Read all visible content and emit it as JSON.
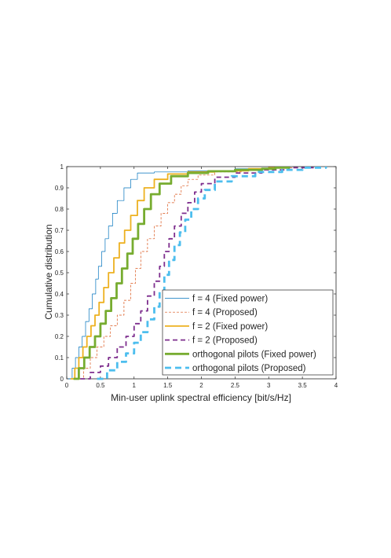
{
  "chart_data": {
    "type": "line",
    "title": "",
    "xlabel": "Min-user uplink spectral efficiency [bit/s/Hz]",
    "ylabel": "Cumulative distribution",
    "xlim": [
      0,
      4
    ],
    "ylim": [
      0,
      1
    ],
    "xticks": [
      "0",
      "0.5",
      "1",
      "1.5",
      "2",
      "2.5",
      "3",
      "3.5",
      "4"
    ],
    "yticks": [
      "0",
      "0.1",
      "0.2",
      "0.3",
      "0.4",
      "0.5",
      "0.6",
      "0.7",
      "0.8",
      "0.9",
      "1"
    ],
    "grid": false,
    "legend_position": "bottom-right",
    "series": [
      {
        "name": "f = 4 (Fixed power)",
        "color": "#0072BD",
        "style": "solid",
        "width": "thin",
        "x": [
          0.02,
          0.08,
          0.13,
          0.18,
          0.23,
          0.28,
          0.33,
          0.38,
          0.43,
          0.47,
          0.52,
          0.57,
          0.62,
          0.68,
          0.75,
          0.85,
          0.95,
          1.05,
          1.3,
          1.8,
          2.5,
          3.0,
          3.3
        ],
        "y": [
          0.0,
          0.05,
          0.1,
          0.15,
          0.2,
          0.27,
          0.33,
          0.4,
          0.47,
          0.53,
          0.6,
          0.66,
          0.72,
          0.78,
          0.84,
          0.9,
          0.94,
          0.97,
          0.975,
          0.98,
          0.99,
          0.995,
          1.0
        ]
      },
      {
        "name": "f = 4 (Proposed)",
        "color": "#D95319",
        "style": "dashed",
        "width": "thin",
        "x": [
          0.15,
          0.25,
          0.35,
          0.45,
          0.55,
          0.65,
          0.75,
          0.85,
          0.95,
          1.02,
          1.1,
          1.2,
          1.3,
          1.4,
          1.5,
          1.6,
          1.7,
          1.8,
          1.95,
          2.2,
          2.6,
          3.0,
          3.4
        ],
        "y": [
          0.0,
          0.05,
          0.1,
          0.15,
          0.2,
          0.25,
          0.3,
          0.37,
          0.45,
          0.52,
          0.6,
          0.66,
          0.72,
          0.78,
          0.83,
          0.87,
          0.91,
          0.94,
          0.96,
          0.975,
          0.985,
          0.995,
          1.0
        ]
      },
      {
        "name": "f = 2 (Fixed power)",
        "color": "#EDB120",
        "style": "solid",
        "width": "medium",
        "x": [
          0.06,
          0.12,
          0.18,
          0.24,
          0.3,
          0.36,
          0.42,
          0.48,
          0.55,
          0.62,
          0.7,
          0.78,
          0.86,
          0.95,
          1.05,
          1.15,
          1.3,
          1.5,
          1.8,
          2.2,
          2.7,
          3.0,
          3.3
        ],
        "y": [
          0.0,
          0.05,
          0.1,
          0.15,
          0.2,
          0.25,
          0.3,
          0.36,
          0.43,
          0.5,
          0.57,
          0.64,
          0.7,
          0.77,
          0.84,
          0.9,
          0.94,
          0.965,
          0.975,
          0.98,
          0.99,
          0.995,
          1.0
        ]
      },
      {
        "name": "f = 2 (Proposed)",
        "color": "#7E2F8E",
        "style": "dashed",
        "width": "medium",
        "x": [
          0.2,
          0.35,
          0.5,
          0.62,
          0.75,
          0.88,
          1.0,
          1.1,
          1.2,
          1.3,
          1.38,
          1.45,
          1.52,
          1.6,
          1.7,
          1.8,
          1.9,
          2.0,
          2.2,
          2.5,
          2.9,
          3.3,
          3.75
        ],
        "y": [
          0.0,
          0.03,
          0.06,
          0.1,
          0.15,
          0.2,
          0.26,
          0.32,
          0.39,
          0.46,
          0.53,
          0.6,
          0.66,
          0.72,
          0.78,
          0.83,
          0.88,
          0.92,
          0.95,
          0.97,
          0.985,
          0.995,
          1.0
        ]
      },
      {
        "name": "orthogonal pilots (Fixed power)",
        "color": "#77AC30",
        "style": "solid",
        "width": "thick",
        "x": [
          0.1,
          0.18,
          0.26,
          0.34,
          0.42,
          0.5,
          0.58,
          0.66,
          0.74,
          0.82,
          0.9,
          0.98,
          1.06,
          1.15,
          1.25,
          1.38,
          1.55,
          1.8,
          2.1,
          2.5,
          2.9,
          3.1,
          3.3
        ],
        "y": [
          0.0,
          0.05,
          0.1,
          0.15,
          0.2,
          0.26,
          0.32,
          0.38,
          0.45,
          0.52,
          0.59,
          0.66,
          0.73,
          0.8,
          0.87,
          0.92,
          0.955,
          0.97,
          0.978,
          0.985,
          0.99,
          0.995,
          1.0
        ]
      },
      {
        "name": "orthogonal pilots (Proposed)",
        "color": "#4DBEEE",
        "style": "dashed",
        "width": "thick",
        "x": [
          0.45,
          0.6,
          0.75,
          0.88,
          1.0,
          1.1,
          1.2,
          1.3,
          1.38,
          1.45,
          1.52,
          1.6,
          1.68,
          1.76,
          1.85,
          1.95,
          2.05,
          2.2,
          2.45,
          2.8,
          3.2,
          3.5,
          3.85
        ],
        "y": [
          0.0,
          0.04,
          0.08,
          0.12,
          0.17,
          0.22,
          0.28,
          0.34,
          0.41,
          0.49,
          0.56,
          0.63,
          0.69,
          0.75,
          0.8,
          0.85,
          0.89,
          0.93,
          0.955,
          0.975,
          0.985,
          0.995,
          1.0
        ]
      }
    ]
  }
}
